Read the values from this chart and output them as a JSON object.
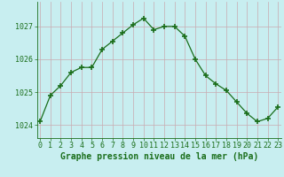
{
  "x": [
    0,
    1,
    2,
    3,
    4,
    5,
    6,
    7,
    8,
    9,
    10,
    11,
    12,
    13,
    14,
    15,
    16,
    17,
    18,
    19,
    20,
    21,
    22,
    23
  ],
  "y": [
    1024.1,
    1024.9,
    1025.2,
    1025.6,
    1025.75,
    1025.75,
    1026.3,
    1026.55,
    1026.8,
    1027.05,
    1027.25,
    1026.9,
    1027.0,
    1027.0,
    1026.7,
    1026.0,
    1025.5,
    1025.25,
    1025.05,
    1024.7,
    1024.35,
    1024.1,
    1024.2,
    1024.55
  ],
  "line_color": "#1a6e1a",
  "marker": "+",
  "marker_size": 4.0,
  "marker_lw": 1.2,
  "bg_color": "#c8eef0",
  "grid_color_v": "#c8aab0",
  "grid_color_h": "#c8aab0",
  "xlabel": "Graphe pression niveau de la mer (hPa)",
  "xlabel_color": "#1a6e1a",
  "tick_color": "#1a6e1a",
  "ylabel_ticks": [
    1024,
    1025,
    1026,
    1027
  ],
  "ylim": [
    1023.6,
    1027.75
  ],
  "xlim": [
    -0.3,
    23.3
  ],
  "label_fontsize": 6.0,
  "xlabel_fontsize": 7.0,
  "linewidth": 0.9
}
